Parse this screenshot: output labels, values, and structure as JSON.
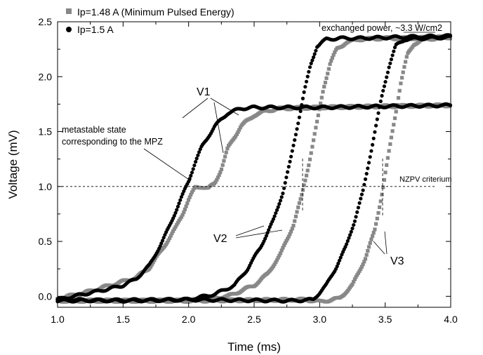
{
  "chart_data": {
    "type": "scatter",
    "xlabel": "Time (ms)",
    "ylabel": "Voltage (mV)",
    "xlim": [
      1.0,
      4.0
    ],
    "ylim": [
      -0.1,
      2.5
    ],
    "xticks": [
      1.0,
      1.5,
      2.0,
      2.5,
      3.0,
      3.5,
      4.0
    ],
    "xtick_labels": [
      "1.0",
      "1.5",
      "2.0",
      "2.5",
      "3.0",
      "3.5",
      "4.0"
    ],
    "yticks": [
      0.0,
      0.5,
      1.0,
      1.5,
      2.0,
      2.5
    ],
    "ytick_labels": [
      "0.0",
      "0.5",
      "1.0",
      "1.5",
      "2.0",
      "2.5"
    ],
    "grid": false,
    "legend_position": "top-left",
    "legend": [
      {
        "label": "Ip=1.48 A (Minimum Pulsed Energy)",
        "marker": "square",
        "color": "#888888"
      },
      {
        "label": "Ip=1.5 A",
        "marker": "circle",
        "color": "#000000"
      }
    ],
    "threshold": {
      "y": 1.0,
      "label": "NZPV criterium"
    },
    "annotations": [
      {
        "text": "exchanged power, ~3.3 W/cm2"
      },
      {
        "text": "metastable state"
      },
      {
        "text": "corresponding to the MPZ"
      },
      {
        "text": "V1"
      },
      {
        "text": "V2"
      },
      {
        "text": "V3"
      }
    ],
    "series": [
      {
        "name": "Ip=1.5 A",
        "voltage_tap": "V1",
        "color": "#000000",
        "marker": "circle",
        "x": [
          1.0,
          1.2,
          1.4,
          1.5,
          1.6,
          1.7,
          1.8,
          1.85,
          1.9,
          1.95,
          2.0,
          2.05,
          2.1,
          2.2,
          2.3,
          2.4,
          2.5,
          2.7,
          3.0,
          3.5,
          4.0
        ],
        "y": [
          -0.03,
          0.02,
          0.07,
          0.1,
          0.16,
          0.28,
          0.5,
          0.63,
          0.77,
          0.91,
          1.05,
          1.22,
          1.36,
          1.55,
          1.67,
          1.71,
          1.72,
          1.72,
          1.72,
          1.73,
          1.74
        ]
      },
      {
        "name": "Ip=1.48 A (Minimum Pulsed Energy)",
        "voltage_tap": "V1",
        "color": "#888888",
        "marker": "square",
        "x": [
          1.0,
          1.2,
          1.4,
          1.6,
          1.7,
          1.8,
          1.9,
          1.95,
          2.0,
          2.05,
          2.1,
          2.15,
          2.2,
          2.25,
          2.3,
          2.4,
          2.5,
          2.6,
          2.7,
          3.0,
          3.5,
          4.0
        ],
        "y": [
          -0.02,
          0.03,
          0.1,
          0.17,
          0.26,
          0.43,
          0.62,
          0.74,
          0.88,
          0.99,
          1.0,
          0.98,
          1.03,
          1.16,
          1.35,
          1.55,
          1.65,
          1.69,
          1.71,
          1.72,
          1.73,
          1.74
        ]
      },
      {
        "name": "Ip=1.5 A",
        "voltage_tap": "V2",
        "color": "#000000",
        "marker": "circle",
        "x": [
          1.0,
          1.5,
          2.0,
          2.2,
          2.35,
          2.45,
          2.55,
          2.65,
          2.72,
          2.78,
          2.83,
          2.88,
          2.93,
          2.98,
          3.05,
          3.15,
          3.3,
          3.6,
          4.0
        ],
        "y": [
          -0.03,
          -0.04,
          -0.03,
          0.02,
          0.1,
          0.25,
          0.45,
          0.7,
          0.95,
          1.25,
          1.55,
          1.85,
          2.1,
          2.28,
          2.34,
          2.35,
          2.35,
          2.36,
          2.37
        ]
      },
      {
        "name": "Ip=1.48 A (Minimum Pulsed Energy)",
        "voltage_tap": "V2",
        "color": "#888888",
        "marker": "square",
        "x": [
          1.0,
          1.5,
          2.0,
          2.3,
          2.5,
          2.6,
          2.7,
          2.8,
          2.86,
          2.92,
          2.98,
          3.03,
          3.08,
          3.13,
          3.2,
          3.3,
          3.5,
          3.7,
          4.0
        ],
        "y": [
          -0.04,
          -0.04,
          -0.04,
          0.0,
          0.1,
          0.2,
          0.38,
          0.65,
          0.9,
          1.22,
          1.58,
          1.9,
          2.12,
          2.25,
          2.31,
          2.34,
          2.35,
          2.35,
          2.36
        ]
      },
      {
        "name": "Ip=1.5 A",
        "voltage_tap": "V3",
        "color": "#000000",
        "marker": "circle",
        "x": [
          1.0,
          2.0,
          2.8,
          2.95,
          3.05,
          3.12,
          3.2,
          3.27,
          3.33,
          3.38,
          3.43,
          3.48,
          3.53,
          3.58,
          3.65,
          3.8,
          4.0
        ],
        "y": [
          -0.04,
          -0.03,
          -0.04,
          -0.03,
          0.1,
          0.25,
          0.45,
          0.7,
          0.95,
          1.25,
          1.55,
          1.85,
          2.1,
          2.28,
          2.34,
          2.35,
          2.36
        ]
      },
      {
        "name": "Ip=1.48 A (Minimum Pulsed Energy)",
        "voltage_tap": "V3",
        "color": "#888888",
        "marker": "square",
        "x": [
          1.0,
          2.0,
          2.9,
          3.0,
          3.15,
          3.25,
          3.35,
          3.42,
          3.47,
          3.52,
          3.57,
          3.62,
          3.67,
          3.72,
          3.8,
          4.0
        ],
        "y": [
          -0.04,
          -0.04,
          -0.03,
          -0.05,
          -0.02,
          0.1,
          0.35,
          0.6,
          0.9,
          1.25,
          1.6,
          1.95,
          2.2,
          2.3,
          2.34,
          2.36
        ]
      }
    ]
  }
}
